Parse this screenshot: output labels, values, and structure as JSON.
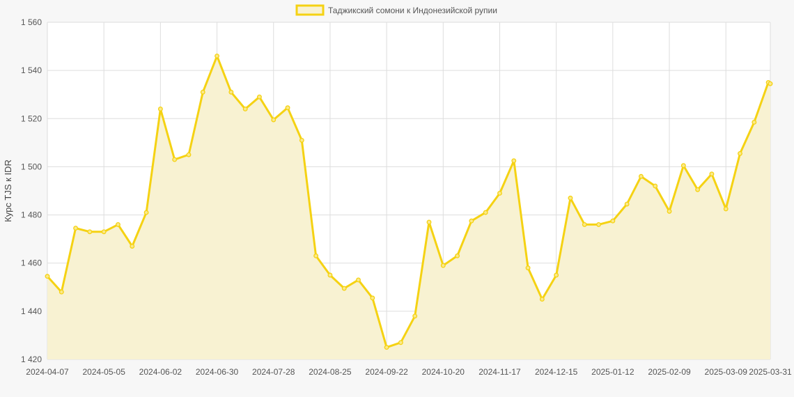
{
  "chart_data": {
    "type": "area",
    "legend": {
      "label": "Таджикский сомони к Индонезийской рупии",
      "position": "top-center"
    },
    "ylabel": "Курс TJS к IDR",
    "ylim": [
      1420,
      1560
    ],
    "y_ticks": [
      "1 420",
      "1 440",
      "1 460",
      "1 480",
      "1 500",
      "1 520",
      "1 540",
      "1 560"
    ],
    "x_ticks": [
      "2024-04-07",
      "2024-05-05",
      "2024-06-02",
      "2024-06-30",
      "2024-07-28",
      "2024-08-25",
      "2024-09-22",
      "2024-10-20",
      "2024-11-17",
      "2024-12-15",
      "2025-01-12",
      "2025-02-09",
      "2025-03-09",
      "2025-03-31"
    ],
    "grid": true,
    "colors": {
      "line": "#f5d213",
      "fill": "#f8f2d2",
      "grid": "#dddddd",
      "plot_bg": "#ffffff"
    },
    "series": [
      {
        "name": "Таджикский сомони к Индонезийской рупии",
        "x": [
          "2024-04-07",
          "2024-04-14",
          "2024-04-21",
          "2024-04-28",
          "2024-05-05",
          "2024-05-12",
          "2024-05-19",
          "2024-05-26",
          "2024-06-02",
          "2024-06-09",
          "2024-06-16",
          "2024-06-23",
          "2024-06-30",
          "2024-07-07",
          "2024-07-14",
          "2024-07-21",
          "2024-07-28",
          "2024-08-04",
          "2024-08-11",
          "2024-08-18",
          "2024-08-25",
          "2024-09-01",
          "2024-09-08",
          "2024-09-15",
          "2024-09-22",
          "2024-09-29",
          "2024-10-06",
          "2024-10-13",
          "2024-10-20",
          "2024-10-27",
          "2024-11-03",
          "2024-11-10",
          "2024-11-17",
          "2024-11-24",
          "2024-12-01",
          "2024-12-08",
          "2024-12-15",
          "2024-12-22",
          "2024-12-29",
          "2025-01-05",
          "2025-01-12",
          "2025-01-19",
          "2025-01-26",
          "2025-02-02",
          "2025-02-09",
          "2025-02-16",
          "2025-02-23",
          "2025-03-02",
          "2025-03-09",
          "2025-03-16",
          "2025-03-23",
          "2025-03-30",
          "2025-03-31"
        ],
        "values": [
          1454.5,
          1448,
          1474.5,
          1473,
          1473,
          1476,
          1467,
          1481,
          1524,
          1503,
          1505,
          1531,
          1546,
          1531,
          1524,
          1529,
          1519.5,
          1524.5,
          1511,
          1463,
          1455,
          1449.5,
          1453,
          1445.5,
          1425,
          1427,
          1438,
          1477,
          1459,
          1463,
          1477.5,
          1481,
          1489,
          1502.5,
          1458,
          1445,
          1455,
          1487,
          1476,
          1476,
          1477.5,
          1484.5,
          1496,
          1492,
          1481.5,
          1500.5,
          1490.5,
          1497,
          1482.5,
          1505.5,
          1518.5,
          1535,
          1534.5
        ]
      }
    ]
  }
}
